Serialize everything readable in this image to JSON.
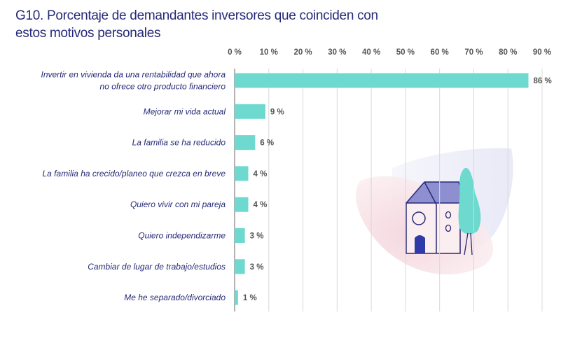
{
  "chart_data": {
    "type": "bar",
    "orientation": "horizontal",
    "title": "G10. Porcentaje de demandantes inversores que coinciden con estos motivos personales",
    "categories": [
      [
        "Invertir en vivienda da una rentabilidad que ahora",
        "no ofrece otro producto financiero"
      ],
      [
        "Mejorar mi vida actual"
      ],
      [
        "La familia se ha reducido"
      ],
      [
        "La familia ha crecido/planeo que crezca en breve"
      ],
      [
        "Quiero vivir con mi pareja"
      ],
      [
        "Quiero independizarme"
      ],
      [
        "Cambiar de lugar de trabajo/estudios"
      ],
      [
        "Me he separado/divorciado"
      ]
    ],
    "values": [
      86,
      9,
      6,
      4,
      4,
      3,
      3,
      1
    ],
    "value_labels": [
      "86 %",
      "9 %",
      "6 %",
      "4 %",
      "4 %",
      "3 %",
      "3 %",
      "1 %"
    ],
    "xticks": [
      "0 %",
      "10 %",
      "20 %",
      "30 %",
      "40 %",
      "50 %",
      "60 %",
      "70 %",
      "80 %",
      "90 %"
    ],
    "xlim": [
      0,
      90
    ],
    "axis_position": "top",
    "grid": true,
    "colors": {
      "bar": "#6dd9cf",
      "title": "#262a78",
      "grid": "#d8d8de"
    }
  },
  "illustration": "house-and-tree-icon"
}
